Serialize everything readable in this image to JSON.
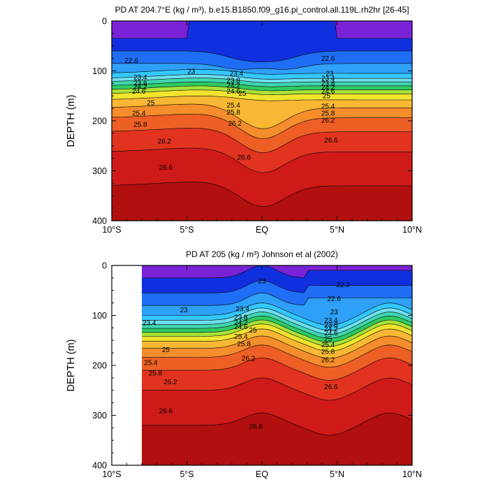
{
  "colors": {
    "bands": [
      "#7a22d8",
      "#1030e0",
      "#1f6ef5",
      "#2ea0f8",
      "#33c8fb",
      "#6fe0f0",
      "#3fd6b0",
      "#2fcb63",
      "#a8e23a",
      "#f1e32e",
      "#f8b833",
      "#f58d2c",
      "#ee5f26",
      "#e23320",
      "#cf1a19",
      "#b20f0f"
    ],
    "frame": "#000000"
  },
  "chart_data": [
    {
      "type": "contour",
      "title": "PD AT 204.7°E (kg / m³), b.e15.B1850.f09_g16.pi_control.all.119L.rh2hr [26-45]",
      "xlabel": "",
      "ylabel": "DEPTH (m)",
      "xlim": [
        -10,
        10
      ],
      "ylim": [
        0,
        400
      ],
      "y_reversed": true,
      "x_ticks": [
        "10°S",
        "5°S",
        "EQ",
        "5°N",
        "10°N"
      ],
      "y_ticks": [
        "0",
        "100",
        "200",
        "300",
        "400"
      ],
      "contour_interval": 0.4,
      "contour_labels": [
        {
          "text": "22.6",
          "x": -8.7,
          "y": 78
        },
        {
          "text": "22.6",
          "x": 4.4,
          "y": 74
        },
        {
          "text": "23",
          "x": -4.7,
          "y": 100
        },
        {
          "text": "23",
          "x": 4.5,
          "y": 104
        },
        {
          "text": "23.4",
          "x": -8.1,
          "y": 112
        },
        {
          "text": "23.4",
          "x": -1.7,
          "y": 104
        },
        {
          "text": "23.4",
          "x": 4.4,
          "y": 114
        },
        {
          "text": "23.8",
          "x": -8.1,
          "y": 124
        },
        {
          "text": "23.8",
          "x": -1.9,
          "y": 118
        },
        {
          "text": "23.8",
          "x": 4.4,
          "y": 124
        },
        {
          "text": "24.2",
          "x": -8.1,
          "y": 131
        },
        {
          "text": "24.2",
          "x": -1.9,
          "y": 128
        },
        {
          "text": "24.2",
          "x": 4.4,
          "y": 132
        },
        {
          "text": "24.6",
          "x": -8.2,
          "y": 140
        },
        {
          "text": "24.6",
          "x": -1.9,
          "y": 140
        },
        {
          "text": "24.6",
          "x": 4.4,
          "y": 140
        },
        {
          "text": "25",
          "x": -7.4,
          "y": 163
        },
        {
          "text": "25",
          "x": -1.3,
          "y": 144
        },
        {
          "text": "25",
          "x": 4.3,
          "y": 149
        },
        {
          "text": "25.4",
          "x": -8.2,
          "y": 184
        },
        {
          "text": "25.4",
          "x": -1.9,
          "y": 168
        },
        {
          "text": "25.4",
          "x": 4.4,
          "y": 170
        },
        {
          "text": "25.8",
          "x": -8.1,
          "y": 206
        },
        {
          "text": "25.8",
          "x": -1.9,
          "y": 182
        },
        {
          "text": "25.8",
          "x": 4.4,
          "y": 184
        },
        {
          "text": "26.2",
          "x": -6.5,
          "y": 240
        },
        {
          "text": "26.2",
          "x": -1.8,
          "y": 204
        },
        {
          "text": "26.2",
          "x": 4.4,
          "y": 198
        },
        {
          "text": "26.6",
          "x": -6.4,
          "y": 292
        },
        {
          "text": "26.6",
          "x": -1.2,
          "y": 272
        },
        {
          "text": "26.6",
          "x": 4.6,
          "y": 238
        }
      ]
    },
    {
      "type": "contour",
      "title": "PD AT 205 (kg / m³) Johnson et al (2002)",
      "xlabel": "",
      "ylabel": "DEPTH (m)",
      "xlim": [
        -10,
        10
      ],
      "ylim": [
        0,
        400
      ],
      "y_reversed": true,
      "x_ticks": [
        "10°S",
        "5°S",
        "EQ",
        "5°N",
        "10°N"
      ],
      "y_ticks": [
        "0",
        "100",
        "200",
        "300",
        "400"
      ],
      "data_x_range": [
        -8,
        10
      ],
      "contour_interval": 0.4,
      "contour_labels": [
        {
          "text": "22.2",
          "x": 5.4,
          "y": 38
        },
        {
          "text": "22.6",
          "x": 4.8,
          "y": 66
        },
        {
          "text": "23",
          "x": -5.2,
          "y": 88
        },
        {
          "text": "23",
          "x": 4.8,
          "y": 92
        },
        {
          "text": "23",
          "x": 0,
          "y": 30
        },
        {
          "text": "23.4",
          "x": -7.5,
          "y": 114
        },
        {
          "text": "23.4",
          "x": -1.3,
          "y": 86
        },
        {
          "text": "23.4",
          "x": 4.6,
          "y": 109
        },
        {
          "text": "23.8",
          "x": -1.4,
          "y": 103
        },
        {
          "text": "23.8",
          "x": 4.6,
          "y": 118
        },
        {
          "text": "24.2",
          "x": -1.4,
          "y": 113
        },
        {
          "text": "24.2",
          "x": 4.6,
          "y": 126
        },
        {
          "text": "24.6",
          "x": -1.4,
          "y": 122
        },
        {
          "text": "24.6",
          "x": 4.6,
          "y": 134
        },
        {
          "text": "25",
          "x": -0.6,
          "y": 129
        },
        {
          "text": "25",
          "x": -6.4,
          "y": 168
        },
        {
          "text": "25",
          "x": 4.4,
          "y": 146
        },
        {
          "text": "25.4",
          "x": -1.4,
          "y": 141
        },
        {
          "text": "25.4",
          "x": -7.4,
          "y": 194
        },
        {
          "text": "25.4",
          "x": 4.4,
          "y": 158
        },
        {
          "text": "25.8",
          "x": -1.2,
          "y": 156
        },
        {
          "text": "25.8",
          "x": -7.1,
          "y": 215
        },
        {
          "text": "25.8",
          "x": 4.4,
          "y": 171
        },
        {
          "text": "26.2",
          "x": -6.1,
          "y": 232
        },
        {
          "text": "26.2",
          "x": -0.9,
          "y": 185
        },
        {
          "text": "26.2",
          "x": 4.4,
          "y": 188
        },
        {
          "text": "26.6",
          "x": -6.4,
          "y": 290
        },
        {
          "text": "26.6",
          "x": -0.4,
          "y": 322
        },
        {
          "text": "26.6",
          "x": 4.6,
          "y": 242
        }
      ]
    }
  ]
}
